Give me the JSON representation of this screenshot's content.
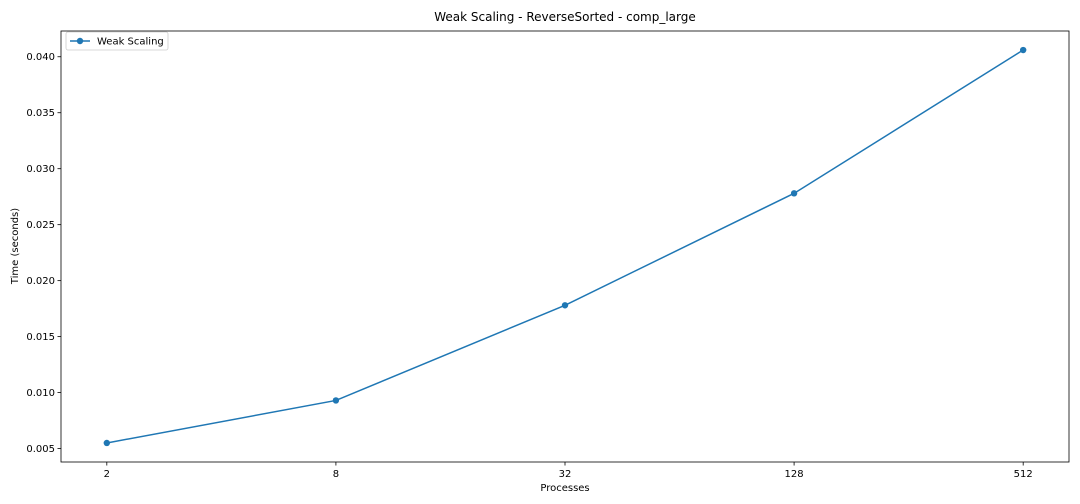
{
  "chart_data": {
    "type": "line",
    "title": "Weak Scaling - ReverseSorted - comp_large",
    "xlabel": "Processes",
    "ylabel": "Time (seconds)",
    "x_scale": "log2",
    "categories": [
      "2",
      "8",
      "32",
      "128",
      "512"
    ],
    "x": [
      2,
      8,
      32,
      128,
      512
    ],
    "ylim": [
      0.0038,
      0.0423
    ],
    "yticks": [
      0.005,
      0.01,
      0.015,
      0.02,
      0.025,
      0.03,
      0.035,
      0.04
    ],
    "ytick_labels": [
      "0.005",
      "0.010",
      "0.015",
      "0.020",
      "0.025",
      "0.030",
      "0.035",
      "0.040"
    ],
    "grid": false,
    "legend_position": "upper-left",
    "series": [
      {
        "name": "Weak Scaling",
        "color": "#1f77b4",
        "marker": "circle",
        "values": [
          0.0055,
          0.0093,
          0.0178,
          0.0278,
          0.0406
        ]
      }
    ]
  }
}
